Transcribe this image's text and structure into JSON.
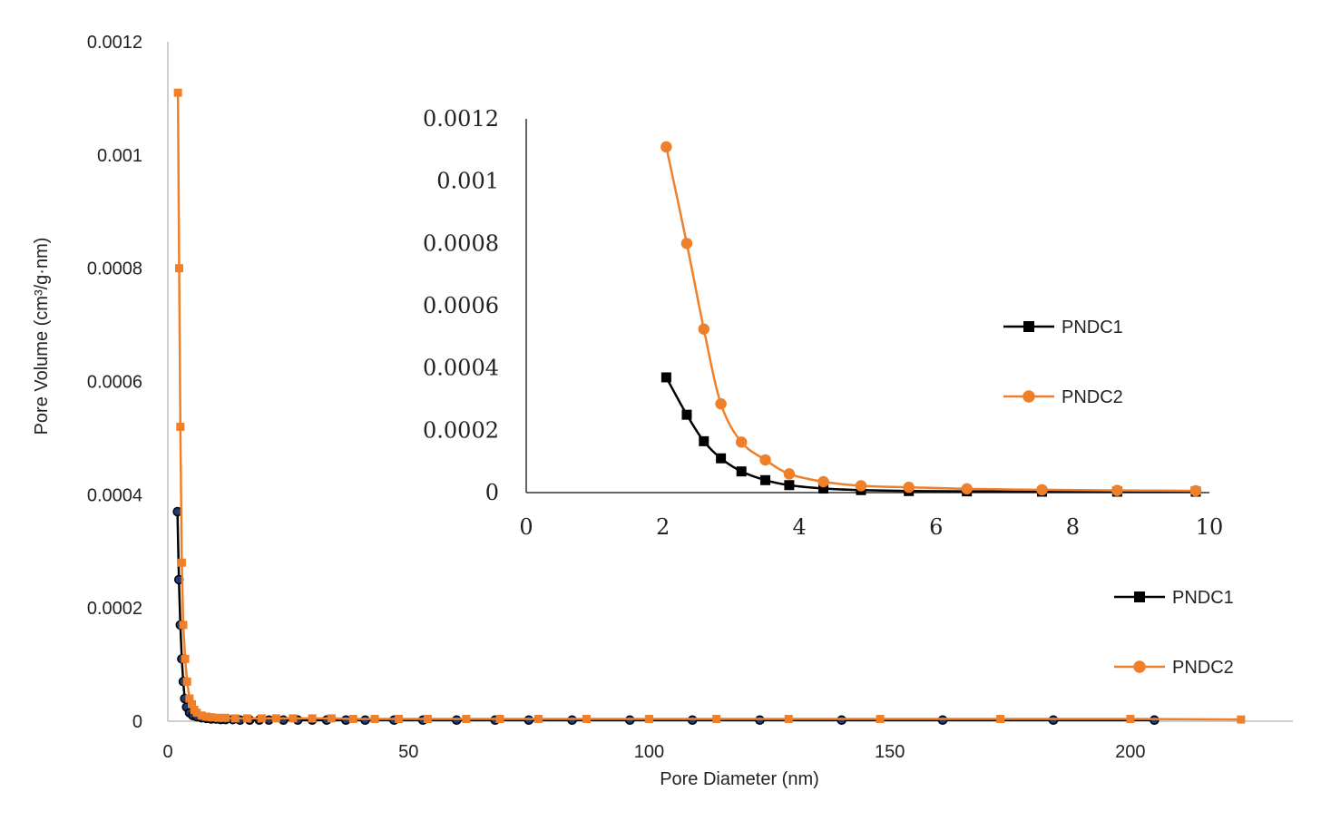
{
  "chart_data": [
    {
      "type": "line",
      "role": "main",
      "xlabel": "Pore Diameter (nm)",
      "ylabel": "Pore Volume (cm³/g·nm)",
      "xlim": [
        0,
        230
      ],
      "ylim": [
        0,
        0.0012
      ],
      "xticks": [
        "0",
        "50",
        "100",
        "150",
        "200"
      ],
      "yticks": [
        "0",
        "0.0002",
        "0.0004",
        "0.0006",
        "0.0008",
        "0.001",
        "0.0012"
      ],
      "grid": false,
      "legend": "bottom-right",
      "series": [
        {
          "name": "PNDC1",
          "color": "#000000",
          "marker": "circle",
          "marker_fill": "#1f3b73",
          "points": [
            [
              2.0,
              0.00037
            ],
            [
              2.3,
              0.00025
            ],
            [
              2.6,
              0.00017
            ],
            [
              2.9,
              0.00011
            ],
            [
              3.2,
              7e-05
            ],
            [
              3.5,
              4e-05
            ],
            [
              3.9,
              2.5e-05
            ],
            [
              4.5,
              1.5e-05
            ],
            [
              5.2,
              1e-05
            ],
            [
              6,
              8e-06
            ],
            [
              7,
              6e-06
            ],
            [
              8,
              5e-06
            ],
            [
              9,
              4e-06
            ],
            [
              10,
              4e-06
            ],
            [
              11,
              3e-06
            ],
            [
              12,
              3e-06
            ],
            [
              13.5,
              3e-06
            ],
            [
              15,
              2e-06
            ],
            [
              17,
              2e-06
            ],
            [
              19,
              2e-06
            ],
            [
              21,
              2e-06
            ],
            [
              24,
              2e-06
            ],
            [
              27,
              2e-06
            ],
            [
              30,
              2e-06
            ],
            [
              33,
              2e-06
            ],
            [
              37,
              2e-06
            ],
            [
              41,
              2e-06
            ],
            [
              47,
              2e-06
            ],
            [
              53,
              2e-06
            ],
            [
              60,
              2e-06
            ],
            [
              68,
              2e-06
            ],
            [
              75,
              2e-06
            ],
            [
              84,
              2e-06
            ],
            [
              96,
              2e-06
            ],
            [
              109,
              2e-06
            ],
            [
              123,
              2e-06
            ],
            [
              140,
              2e-06
            ],
            [
              161,
              2e-06
            ],
            [
              184,
              2e-06
            ],
            [
              205,
              2e-06
            ]
          ]
        },
        {
          "name": "PNDC2",
          "color": "#f07f2a",
          "marker": "square",
          "points": [
            [
              2.1,
              0.00111
            ],
            [
              2.35,
              0.0008
            ],
            [
              2.6,
              0.00052
            ],
            [
              2.9,
              0.00028
            ],
            [
              3.2,
              0.00017
            ],
            [
              3.6,
              0.00011
            ],
            [
              4.0,
              7e-05
            ],
            [
              4.5,
              4e-05
            ],
            [
              5.0,
              3e-05
            ],
            [
              5.5,
              2e-05
            ],
            [
              6,
              1.5e-05
            ],
            [
              7,
              1e-05
            ],
            [
              8,
              8e-06
            ],
            [
              9,
              7e-06
            ],
            [
              10.5,
              6e-06
            ],
            [
              12,
              6e-06
            ],
            [
              14,
              5e-06
            ],
            [
              16.5,
              5e-06
            ],
            [
              19.5,
              5e-06
            ],
            [
              22.5,
              5e-06
            ],
            [
              26,
              5e-06
            ],
            [
              30,
              5e-06
            ],
            [
              34,
              5e-06
            ],
            [
              38.5,
              4e-06
            ],
            [
              43,
              4e-06
            ],
            [
              48,
              4e-06
            ],
            [
              54,
              4e-06
            ],
            [
              62,
              4e-06
            ],
            [
              69,
              4e-06
            ],
            [
              77,
              4e-06
            ],
            [
              87,
              4e-06
            ],
            [
              100,
              4e-06
            ],
            [
              114,
              4e-06
            ],
            [
              129,
              4e-06
            ],
            [
              148,
              4e-06
            ],
            [
              173,
              4e-06
            ],
            [
              200,
              4e-06
            ],
            [
              223,
              3e-06
            ]
          ]
        }
      ]
    },
    {
      "type": "line",
      "role": "inset",
      "xlim": [
        0,
        10
      ],
      "ylim": [
        0,
        0.0012
      ],
      "xticks": [
        "0",
        "2",
        "4",
        "6",
        "8",
        "10"
      ],
      "yticks": [
        "0",
        "0.0002",
        "0.0004",
        "0.0006",
        "0.0008",
        "0.001",
        "0.0012"
      ],
      "grid": false,
      "legend": "right",
      "series": [
        {
          "name": "PNDC1",
          "color": "#000000",
          "marker": "square",
          "points": [
            [
              2.05,
              0.00037
            ],
            [
              2.35,
              0.00025
            ],
            [
              2.6,
              0.000165
            ],
            [
              2.85,
              0.00011
            ],
            [
              3.15,
              6.8e-05
            ],
            [
              3.5,
              4e-05
            ],
            [
              3.85,
              2.4e-05
            ],
            [
              4.35,
              1.3e-05
            ],
            [
              4.9,
              8e-06
            ],
            [
              5.6,
              5e-06
            ],
            [
              6.45,
              4e-06
            ],
            [
              7.55,
              3e-06
            ],
            [
              8.65,
              3e-06
            ],
            [
              9.8,
              3e-06
            ]
          ]
        },
        {
          "name": "PNDC2",
          "color": "#f07f2a",
          "marker": "circle",
          "points": [
            [
              2.05,
              0.00111
            ],
            [
              2.35,
              0.0008
            ],
            [
              2.6,
              0.000525
            ],
            [
              2.85,
              0.000285
            ],
            [
              3.15,
              0.000162
            ],
            [
              3.5,
              0.000105
            ],
            [
              3.85,
              6e-05
            ],
            [
              4.35,
              3.5e-05
            ],
            [
              4.9,
              2.2e-05
            ],
            [
              5.6,
              1.7e-05
            ],
            [
              6.45,
              1.2e-05
            ],
            [
              7.55,
              9e-06
            ],
            [
              8.65,
              7e-06
            ],
            [
              9.8,
              6e-06
            ]
          ]
        }
      ]
    }
  ]
}
